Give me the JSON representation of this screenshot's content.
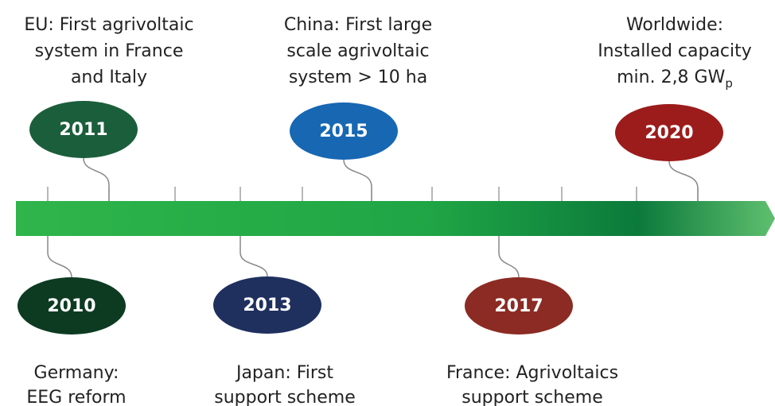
{
  "events": [
    {
      "year": "2011",
      "position": "top",
      "lines": [
        "EU: First agrivoltaic",
        "system in France",
        "and Italy"
      ]
    },
    {
      "year": "2015",
      "position": "top",
      "lines": [
        "China: First large",
        "scale agrivoltaic",
        "system > 10 ha"
      ]
    },
    {
      "year": "2020",
      "position": "top",
      "lines": [
        "Worldwide:",
        "Installed capacity",
        "min. 2,8 GW"
      ],
      "subscript": "p"
    },
    {
      "year": "2010",
      "position": "bottom",
      "lines": [
        "Germany:",
        "EEG reform"
      ]
    },
    {
      "year": "2013",
      "position": "bottom",
      "lines": [
        "Japan: First",
        "support scheme"
      ]
    },
    {
      "year": "2017",
      "position": "bottom",
      "lines": [
        "France: Agrivoltaics",
        "support scheme"
      ]
    }
  ]
}
